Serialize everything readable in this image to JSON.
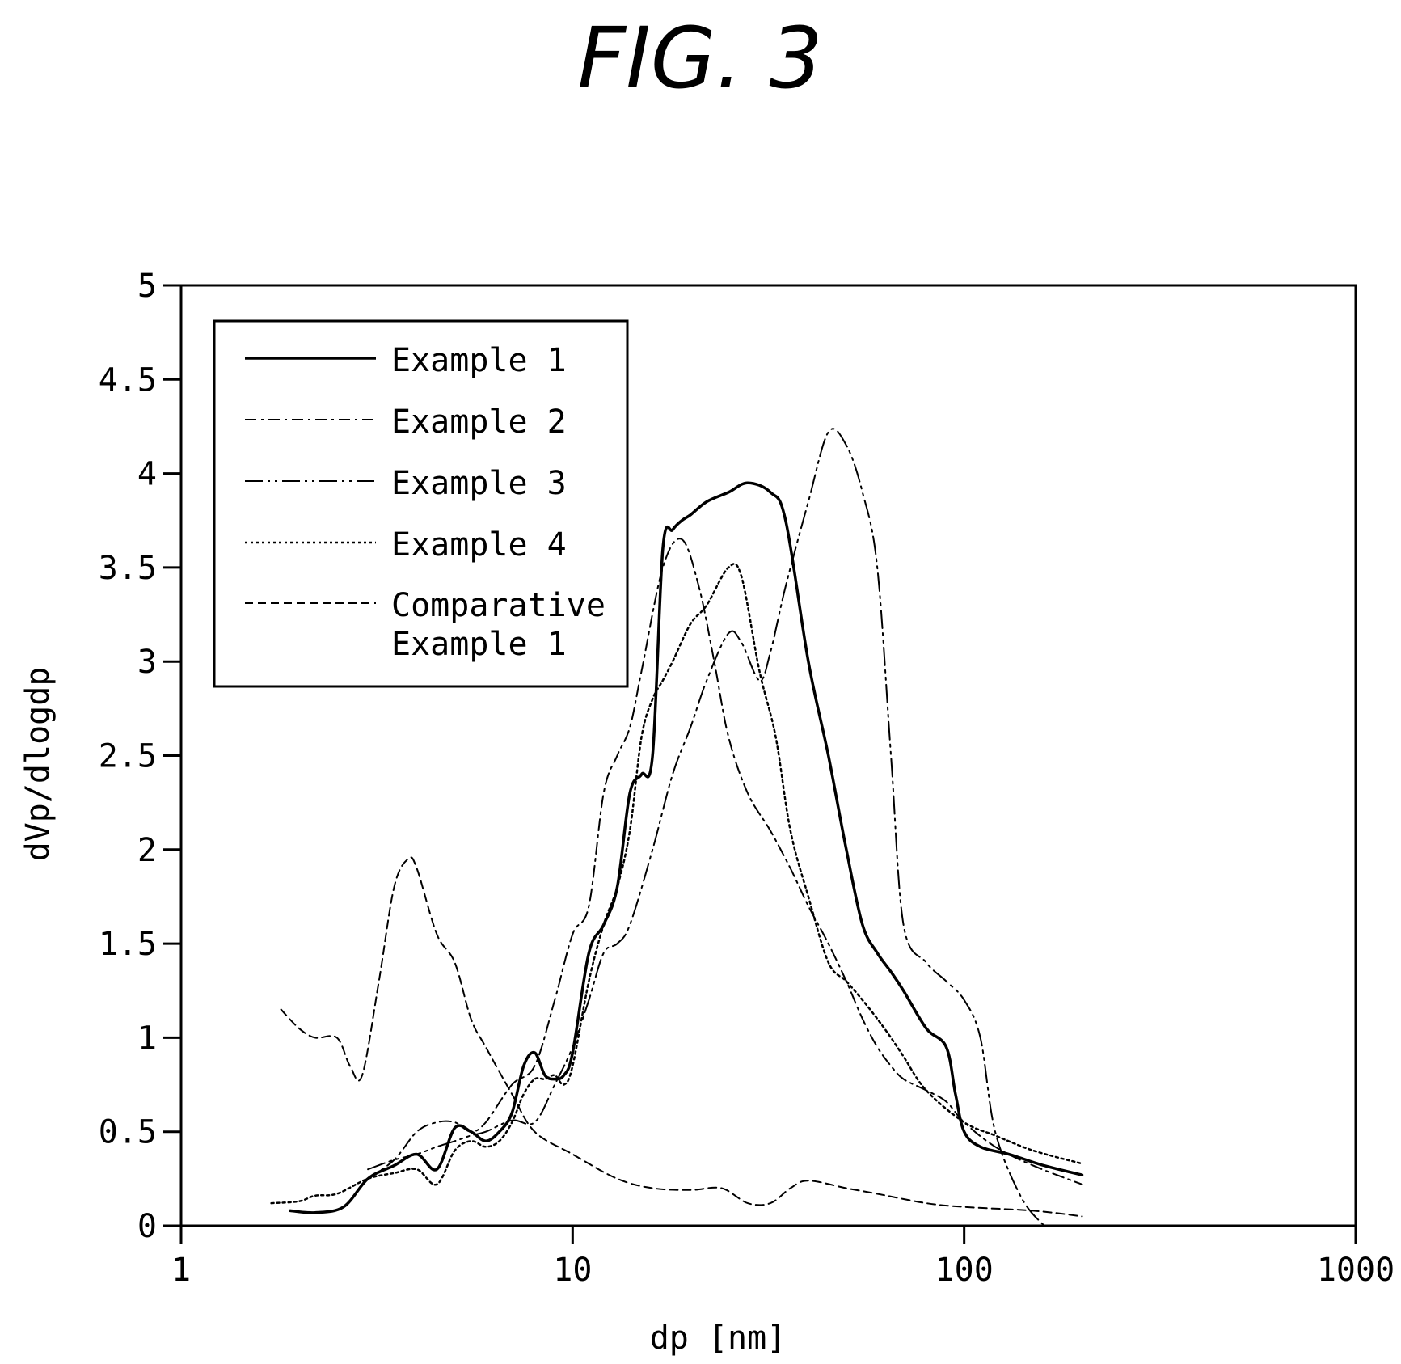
{
  "figure_label": "FIG. 3",
  "chart_data": {
    "type": "line",
    "title": "",
    "xlabel": "dp [nm]",
    "ylabel": "dVp/dlogdp",
    "x_scale": "log",
    "xlim": [
      1,
      1000
    ],
    "ylim": [
      0,
      5
    ],
    "x_ticks": [
      1,
      10,
      100,
      1000
    ],
    "x_tick_labels": [
      "1",
      "10",
      "100",
      "1000"
    ],
    "y_ticks": [
      0,
      0.5,
      1,
      1.5,
      2,
      2.5,
      3,
      3.5,
      4,
      4.5,
      5
    ],
    "y_tick_labels": [
      "0",
      "0.5",
      "1",
      "1.5",
      "2",
      "2.5",
      "3",
      "3.5",
      "4",
      "4.5",
      "5"
    ],
    "grid": false,
    "legend_position": "top-left",
    "series": [
      {
        "name": "Example 1",
        "dash": "solid",
        "x": [
          1.9,
          2.2,
          2.6,
          3.0,
          3.5,
          4.0,
          4.5,
          5.0,
          5.5,
          6.0,
          6.5,
          7.0,
          7.5,
          8.0,
          8.5,
          9.0,
          9.5,
          10,
          11,
          12,
          13,
          14,
          15,
          16,
          17,
          18,
          19,
          20,
          22,
          25,
          28,
          32,
          35,
          40,
          45,
          50,
          55,
          60,
          65,
          70,
          80,
          90,
          95,
          100,
          110,
          130,
          160,
          200
        ],
        "y": [
          0.08,
          0.07,
          0.1,
          0.25,
          0.32,
          0.38,
          0.3,
          0.52,
          0.5,
          0.45,
          0.5,
          0.6,
          0.85,
          0.92,
          0.8,
          0.78,
          0.8,
          0.92,
          1.45,
          1.6,
          1.8,
          2.3,
          2.4,
          2.5,
          3.6,
          3.7,
          3.75,
          3.78,
          3.85,
          3.9,
          3.95,
          3.9,
          3.75,
          3.0,
          2.5,
          2.0,
          1.6,
          1.45,
          1.35,
          1.25,
          1.05,
          0.95,
          0.7,
          0.5,
          0.42,
          0.38,
          0.32,
          0.27
        ]
      },
      {
        "name": "Example 2",
        "dash": "dash-dot",
        "x": [
          3.0,
          3.5,
          4.0,
          4.5,
          5.0,
          5.5,
          6.0,
          7.0,
          8.0,
          9.0,
          10,
          11,
          12,
          13,
          14,
          15,
          17,
          19,
          21,
          23,
          25,
          28,
          32,
          36,
          40,
          45,
          50,
          55,
          60,
          65,
          70,
          80,
          90,
          100,
          120,
          150,
          200
        ],
        "y": [
          0.25,
          0.35,
          0.5,
          0.55,
          0.55,
          0.5,
          0.55,
          0.75,
          0.85,
          1.2,
          1.55,
          1.7,
          2.3,
          2.5,
          2.65,
          2.95,
          3.5,
          3.65,
          3.4,
          3.0,
          2.6,
          2.3,
          2.1,
          1.9,
          1.7,
          1.5,
          1.3,
          1.1,
          0.95,
          0.85,
          0.78,
          0.72,
          0.66,
          0.55,
          0.42,
          0.32,
          0.22
        ]
      },
      {
        "name": "Example 3",
        "dash": "dash-dot-dot",
        "x": [
          3.0,
          3.5,
          4.0,
          4.5,
          5.0,
          5.5,
          6.0,
          7.0,
          8.0,
          9.0,
          10,
          11,
          12,
          13,
          14,
          16,
          18,
          20,
          22,
          25,
          27,
          30,
          32,
          35,
          40,
          45,
          50,
          55,
          60,
          65,
          70,
          80,
          90,
          100,
          110,
          120,
          140,
          160
        ],
        "y": [
          0.3,
          0.35,
          0.38,
          0.42,
          0.45,
          0.48,
          0.5,
          0.56,
          0.55,
          0.75,
          0.95,
          1.2,
          1.45,
          1.5,
          1.6,
          2.0,
          2.4,
          2.65,
          2.9,
          3.15,
          3.1,
          2.9,
          3.05,
          3.4,
          3.85,
          4.22,
          4.15,
          3.9,
          3.5,
          2.5,
          1.6,
          1.4,
          1.3,
          1.2,
          1.0,
          0.5,
          0.15,
          0.0
        ]
      },
      {
        "name": "Example 4",
        "dash": "dotted",
        "x": [
          1.7,
          2.0,
          2.2,
          2.5,
          3.0,
          3.5,
          4.0,
          4.5,
          5.0,
          5.5,
          6.0,
          6.5,
          7.0,
          7.5,
          8.0,
          8.5,
          9.0,
          9.5,
          10,
          11,
          12,
          13,
          14,
          15,
          16,
          17,
          18,
          20,
          22,
          25,
          27,
          30,
          33,
          36,
          40,
          45,
          50,
          55,
          60,
          65,
          70,
          80,
          100,
          120,
          150,
          200
        ],
        "y": [
          0.12,
          0.13,
          0.16,
          0.17,
          0.25,
          0.28,
          0.3,
          0.22,
          0.4,
          0.45,
          0.42,
          0.45,
          0.55,
          0.7,
          0.78,
          0.78,
          0.8,
          0.75,
          0.85,
          1.3,
          1.6,
          1.8,
          2.1,
          2.6,
          2.8,
          2.9,
          3.0,
          3.2,
          3.3,
          3.5,
          3.45,
          2.95,
          2.6,
          2.1,
          1.75,
          1.4,
          1.3,
          1.2,
          1.1,
          1.0,
          0.9,
          0.72,
          0.55,
          0.48,
          0.4,
          0.33
        ]
      },
      {
        "name": "Comparative Example 1",
        "dash": "dashed",
        "x": [
          1.8,
          2.0,
          2.2,
          2.5,
          2.7,
          2.9,
          3.2,
          3.5,
          3.8,
          4.0,
          4.5,
          5.0,
          5.5,
          6.0,
          7.0,
          8.0,
          10,
          13,
          16,
          20,
          24,
          28,
          32,
          36,
          40,
          50,
          60,
          80,
          100,
          150,
          200
        ],
        "y": [
          1.15,
          1.05,
          1.0,
          1.0,
          0.85,
          0.8,
          1.3,
          1.8,
          1.95,
          1.9,
          1.55,
          1.4,
          1.1,
          0.95,
          0.7,
          0.5,
          0.38,
          0.25,
          0.2,
          0.19,
          0.2,
          0.12,
          0.12,
          0.2,
          0.24,
          0.2,
          0.17,
          0.12,
          0.1,
          0.08,
          0.05
        ]
      }
    ]
  },
  "legend": {
    "items": [
      {
        "label": "Example 1",
        "label2": ""
      },
      {
        "label": "Example 2",
        "label2": ""
      },
      {
        "label": "Example 3",
        "label2": ""
      },
      {
        "label": "Example 4",
        "label2": ""
      },
      {
        "label": "Comparative",
        "label2": "Example 1"
      }
    ]
  }
}
